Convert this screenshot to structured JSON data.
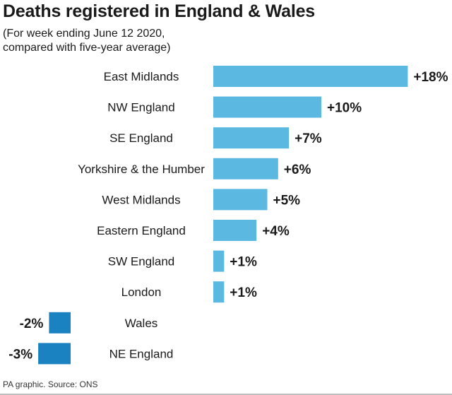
{
  "title": "Deaths registered in England & Wales",
  "subtitle": [
    "(For week ending June 12 2020,",
    "compared with five-year average)"
  ],
  "footer": "PA graphic. Source: ONS",
  "chart_data": {
    "type": "bar",
    "orientation": "horizontal",
    "title": "Deaths registered in England & Wales",
    "subtitle": "(For week ending June 12 2020, compared with five-year average)",
    "categories": [
      "East Midlands",
      "NW England",
      "SE England",
      "Yorkshire & the Humber",
      "West Midlands",
      "Eastern England",
      "SW England",
      "London",
      "Wales",
      "NE England"
    ],
    "values": [
      18,
      10,
      7,
      6,
      5,
      4,
      1,
      1,
      -2,
      -3
    ],
    "labels": [
      "+18%",
      "+10%",
      "+7%",
      "+6%",
      "+5%",
      "+4%",
      "+1%",
      "+1%",
      "-2%",
      "-3%"
    ],
    "unit": "%",
    "colors": {
      "positive": "#5ab8e1",
      "negative": "#1a82c0"
    },
    "grid": false,
    "legend": false
  }
}
